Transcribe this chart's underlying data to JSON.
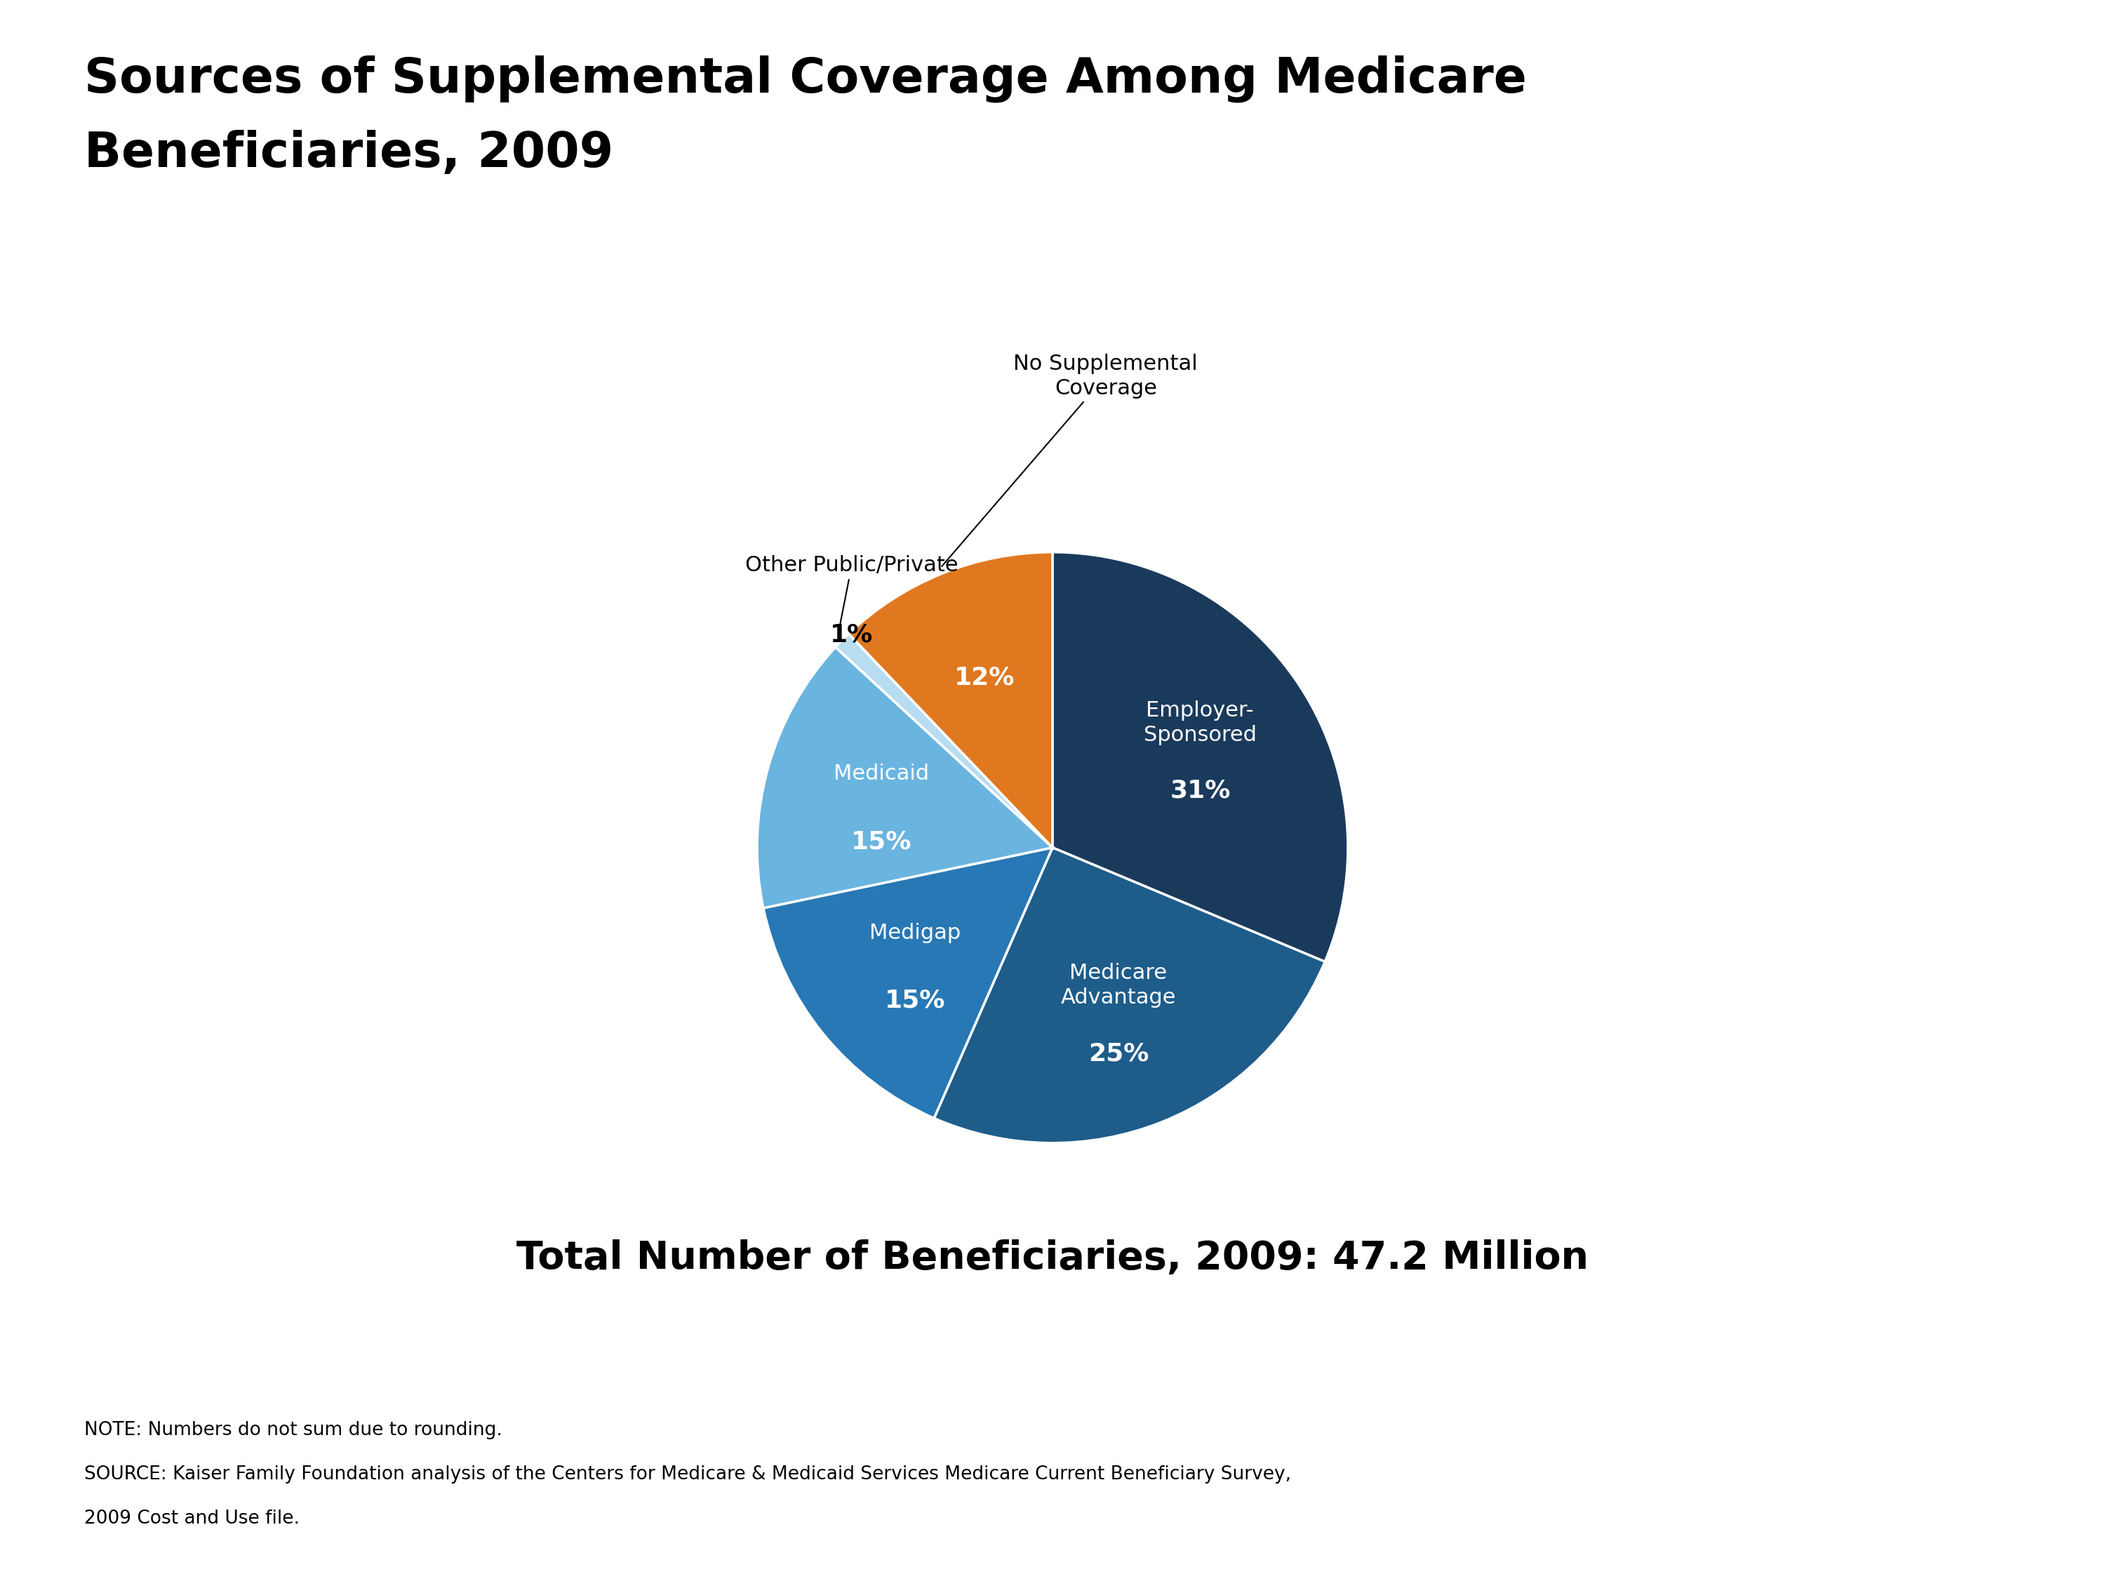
{
  "title_line1": "Sources of Supplemental Coverage Among Medicare",
  "title_line2": "Beneficiaries, 2009",
  "subtitle": "Total Number of Beneficiaries, 2009: 47.2 Million",
  "note_line1": "NOTE: Numbers do not sum due to rounding.",
  "note_line2": "SOURCE: Kaiser Family Foundation analysis of the Centers for Medicare & Medicaid Services Medicare Current Beneficiary Survey,",
  "note_line3": "2009 Cost and Use file.",
  "slices": [
    {
      "label": "Employer-\nSponsored",
      "pct_label": "31%",
      "value": 31,
      "color": "#1a3a5c",
      "label_inside": true
    },
    {
      "label": "Medicare\nAdvantage",
      "pct_label": "25%",
      "value": 25,
      "color": "#1e5c8a",
      "label_inside": true
    },
    {
      "label": "Medigap",
      "pct_label": "15%",
      "value": 15,
      "color": "#2878b5",
      "label_inside": true
    },
    {
      "label": "Medicaid",
      "pct_label": "15%",
      "value": 15,
      "color": "#6ab4e0",
      "label_inside": true
    },
    {
      "label": "Other Public/Private",
      "pct_label": "1%",
      "value": 1,
      "color": "#b8ddf0",
      "label_inside": false
    },
    {
      "label": "No Supplemental\nCoverage",
      "pct_label": "12%",
      "value": 12,
      "color": "#e07820",
      "label_inside": false
    }
  ],
  "startangle": 90,
  "background_color": "#ffffff"
}
